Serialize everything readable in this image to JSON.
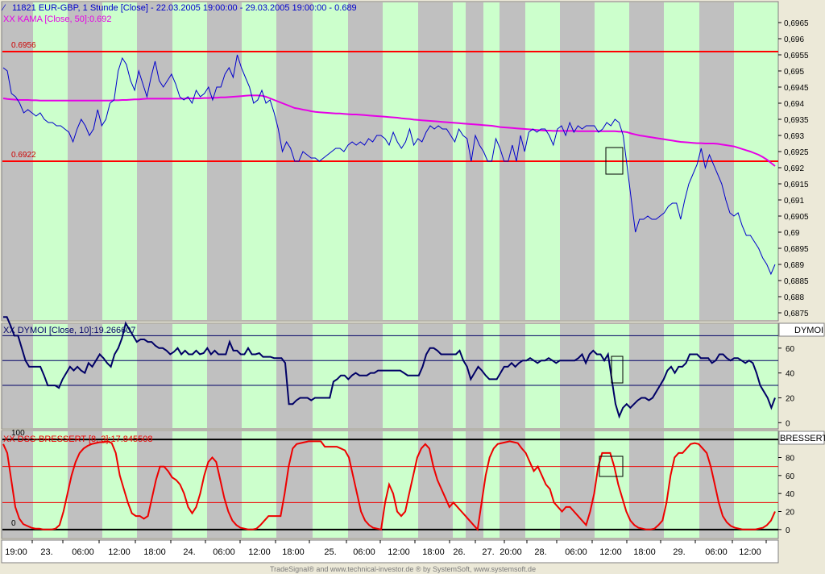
{
  "header": {
    "main_title": "11821  EUR-GBP, 1 Stunde [Close] - 22.03.2005 19:00:00 - 29.03.2005 19:00:00 - 0.689",
    "kama_label": "XX KAMA [Close, 50]:0.692",
    "dymoi_label": "XX DYMOI [Close, 10]:19.266607",
    "dss_label": "XX DSS-BRESSERT [8, 3]:17.845508"
  },
  "panel_tabs": {
    "dymoi": "DYMOI",
    "dss": "BRESSERT"
  },
  "footer": "TradeSignal® and www.technical-investor.de ® by SystemSoft, www.systemsoft.de",
  "colors": {
    "background": "#ffffff",
    "band_green": "#ccffcc",
    "band_gray": "#c0c0c0",
    "price_line": "#0000cc",
    "kama_line": "#e600e6",
    "level_line": "#ff0000",
    "dymoi_line": "#000066",
    "dss_line": "#ee0000"
  },
  "chart_data": [
    {
      "type": "line",
      "title": "EUR-GBP, 1 Stunde [Close]",
      "ylim": [
        0.68725,
        0.69715
      ],
      "y_ticks": [
        "0,6965",
        "0,696",
        "0,6955",
        "0,695",
        "0,6945",
        "0,694",
        "0,6935",
        "0,693",
        "0,6925",
        "0,692",
        "0,6915",
        "0,691",
        "0,6905",
        "0,69",
        "0,6895",
        "0,689",
        "0,6885",
        "0,688",
        "0,6875"
      ],
      "horizontal_levels": [
        {
          "label": "0.6956",
          "value": 0.6956
        },
        {
          "label": "0.6922",
          "value": 0.6922
        }
      ],
      "series": [
        {
          "name": "EUR-GBP",
          "values": [
            0.6951,
            0.695,
            0.6943,
            0.6942,
            0.694,
            0.6937,
            0.6938,
            0.6937,
            0.6936,
            0.6937,
            0.6935,
            0.6934,
            0.6934,
            0.6933,
            0.6933,
            0.6932,
            0.6931,
            0.6928,
            0.6932,
            0.6935,
            0.6933,
            0.693,
            0.6932,
            0.6938,
            0.6933,
            0.6935,
            0.694,
            0.6941,
            0.695,
            0.6954,
            0.6952,
            0.6947,
            0.6944,
            0.695,
            0.6946,
            0.6942,
            0.6948,
            0.6953,
            0.6947,
            0.6945,
            0.6947,
            0.6949,
            0.6946,
            0.6942,
            0.6941,
            0.6942,
            0.694,
            0.6944,
            0.6942,
            0.6943,
            0.6945,
            0.6941,
            0.6945,
            0.6945,
            0.6949,
            0.6951,
            0.6948,
            0.6955,
            0.6951,
            0.6948,
            0.6945,
            0.694,
            0.6941,
            0.6944,
            0.694,
            0.6941,
            0.6937,
            0.6932,
            0.6925,
            0.6928,
            0.6926,
            0.6922,
            0.6922,
            0.6925,
            0.6924,
            0.6923,
            0.6923,
            0.6922,
            0.6923,
            0.6924,
            0.6925,
            0.6926,
            0.6926,
            0.6925,
            0.6927,
            0.6928,
            0.6927,
            0.6928,
            0.6927,
            0.6929,
            0.6928,
            0.693,
            0.693,
            0.6929,
            0.6927,
            0.6931,
            0.6928,
            0.6926,
            0.6928,
            0.6932,
            0.6927,
            0.6929,
            0.6928,
            0.6931,
            0.6933,
            0.6932,
            0.6933,
            0.6932,
            0.6932,
            0.693,
            0.6928,
            0.6932,
            0.693,
            0.6929,
            0.6922,
            0.693,
            0.6927,
            0.6925,
            0.6922,
            0.6922,
            0.6929,
            0.6926,
            0.6922,
            0.6922,
            0.6927,
            0.6922,
            0.693,
            0.6925,
            0.6931,
            0.6932,
            0.6931,
            0.6932,
            0.6932,
            0.693,
            0.6927,
            0.6932,
            0.6933,
            0.693,
            0.6934,
            0.6931,
            0.6933,
            0.6932,
            0.6933,
            0.6933,
            0.6933,
            0.6931,
            0.6932,
            0.6934,
            0.6933,
            0.6935,
            0.6934,
            0.693,
            0.692,
            0.691,
            0.69,
            0.6904,
            0.6904,
            0.6905,
            0.6904,
            0.6904,
            0.6905,
            0.6906,
            0.6908,
            0.6909,
            0.6909,
            0.6904,
            0.691,
            0.6915,
            0.6918,
            0.6921,
            0.6926,
            0.692,
            0.6924,
            0.6921,
            0.6918,
            0.6915,
            0.691,
            0.6906,
            0.6905,
            0.6906,
            0.6902,
            0.6899,
            0.6899,
            0.6897,
            0.6895,
            0.6892,
            0.689,
            0.6887,
            0.689
          ]
        },
        {
          "name": "KAMA",
          "values": [
            0.69415,
            0.69413,
            0.69412,
            0.69411,
            0.6941,
            0.6941,
            0.6941,
            0.69409,
            0.69409,
            0.69408,
            0.69408,
            0.69408,
            0.69408,
            0.69408,
            0.69408,
            0.69408,
            0.69408,
            0.69408,
            0.69408,
            0.69408,
            0.69408,
            0.69408,
            0.69408,
            0.69408,
            0.69408,
            0.69408,
            0.69408,
            0.69409,
            0.69409,
            0.6941,
            0.6941,
            0.69411,
            0.69412,
            0.69412,
            0.69413,
            0.69414,
            0.69414,
            0.69414,
            0.69414,
            0.69414,
            0.69414,
            0.69414,
            0.69414,
            0.69414,
            0.69414,
            0.69415,
            0.69415,
            0.69415,
            0.69415,
            0.69416,
            0.69416,
            0.69417,
            0.69417,
            0.69418,
            0.69418,
            0.69419,
            0.6942,
            0.69421,
            0.69422,
            0.69423,
            0.69424,
            0.69424,
            0.69424,
            0.69423,
            0.6942,
            0.69415,
            0.6941,
            0.69405,
            0.694,
            0.69395,
            0.6939,
            0.69385,
            0.69383,
            0.6938,
            0.69378,
            0.69375,
            0.69373,
            0.69372,
            0.69371,
            0.6937,
            0.69369,
            0.69368,
            0.69368,
            0.69367,
            0.69366,
            0.69365,
            0.69365,
            0.69364,
            0.69363,
            0.69362,
            0.69361,
            0.6936,
            0.69359,
            0.69358,
            0.69357,
            0.69356,
            0.69355,
            0.69353,
            0.69352,
            0.69351,
            0.69349,
            0.69348,
            0.69347,
            0.69346,
            0.69345,
            0.69344,
            0.69343,
            0.69342,
            0.69341,
            0.6934,
            0.69339,
            0.69338,
            0.69337,
            0.69336,
            0.69335,
            0.69334,
            0.69333,
            0.69332,
            0.69331,
            0.6933,
            0.69328,
            0.69326,
            0.69325,
            0.69324,
            0.69323,
            0.69322,
            0.69321,
            0.6932,
            0.69319,
            0.69318,
            0.69317,
            0.69316,
            0.69315,
            0.69315,
            0.69314,
            0.69314,
            0.69314,
            0.69314,
            0.69314,
            0.69314,
            0.69313,
            0.69313,
            0.69313,
            0.69313,
            0.69313,
            0.69313,
            0.69313,
            0.69313,
            0.69313,
            0.69313,
            0.69312,
            0.69312,
            0.6931,
            0.69306,
            0.69303,
            0.693,
            0.69298,
            0.69296,
            0.69294,
            0.69292,
            0.6929,
            0.69288,
            0.69286,
            0.69284,
            0.69282,
            0.6928,
            0.69279,
            0.69278,
            0.69277,
            0.69276,
            0.69276,
            0.69275,
            0.69275,
            0.69275,
            0.69274,
            0.69272,
            0.6927,
            0.69268,
            0.69266,
            0.69262,
            0.69258,
            0.69254,
            0.6925,
            0.69245,
            0.6924,
            0.69233,
            0.69225,
            0.69215,
            0.69205
          ]
        }
      ]
    },
    {
      "type": "line",
      "title": "DYMOI [Close, 10]",
      "ylim": [
        -5,
        80
      ],
      "y_ticks": [
        60,
        40,
        20,
        0
      ],
      "reference_lines": [
        30,
        50,
        70
      ],
      "series": [
        {
          "name": "DYMOI",
          "values": [
            85,
            85,
            78,
            70,
            70,
            60,
            50,
            45,
            45,
            45,
            45,
            38,
            30,
            30,
            30,
            28,
            35,
            40,
            45,
            42,
            45,
            42,
            40,
            48,
            45,
            50,
            55,
            52,
            48,
            45,
            55,
            60,
            68,
            80,
            75,
            70,
            65,
            67,
            67,
            65,
            65,
            62,
            60,
            60,
            58,
            55,
            57,
            60,
            55,
            58,
            55,
            55,
            58,
            55,
            56,
            60,
            55,
            58,
            55,
            55,
            55,
            65,
            58,
            58,
            55,
            55,
            60,
            55,
            55,
            56,
            53,
            53,
            53,
            52,
            52,
            52,
            48,
            15,
            15,
            18,
            20,
            20,
            20,
            18,
            20,
            20,
            20,
            20,
            20,
            33,
            35,
            38,
            38,
            35,
            38,
            40,
            38,
            38,
            38,
            40,
            40,
            42,
            42,
            42,
            42,
            42,
            42,
            42,
            40,
            38,
            38,
            38,
            38,
            45,
            55,
            60,
            60,
            58,
            55,
            55,
            55,
            55,
            55,
            58,
            50,
            45,
            35,
            40,
            45,
            42,
            38,
            35,
            35,
            35,
            40,
            45,
            45,
            48,
            45,
            48,
            50,
            50,
            52,
            50,
            48,
            50,
            50,
            52,
            50,
            48,
            50,
            50,
            50,
            50,
            50,
            52,
            55,
            48,
            55,
            58,
            55,
            55,
            50,
            55,
            35,
            15,
            5,
            12,
            15,
            12,
            15,
            18,
            20,
            20,
            18,
            20,
            25,
            30,
            35,
            42,
            45,
            40,
            45,
            45,
            48,
            55,
            55,
            55,
            52,
            52,
            52,
            48,
            50,
            55,
            55,
            52,
            50,
            52,
            52,
            50,
            48,
            50,
            48,
            40,
            30,
            25,
            20,
            12,
            20
          ]
        }
      ]
    },
    {
      "type": "line",
      "title": "DSS-BRESSERT [8, 3]",
      "ylim": [
        -10,
        110
      ],
      "y_ticks": [
        80,
        60,
        40,
        20,
        0
      ],
      "reference_lines": [
        0,
        30,
        70,
        100
      ],
      "series": [
        {
          "name": "DSS-BRESSERT",
          "values": [
            95,
            85,
            55,
            25,
            12,
            6,
            4,
            2,
            1,
            1,
            0,
            0,
            0,
            1,
            5,
            20,
            40,
            60,
            75,
            85,
            90,
            93,
            95,
            96,
            97,
            97,
            98,
            96,
            85,
            60,
            45,
            30,
            18,
            15,
            15,
            12,
            15,
            35,
            55,
            70,
            70,
            65,
            58,
            55,
            50,
            40,
            25,
            18,
            25,
            40,
            60,
            75,
            80,
            75,
            55,
            35,
            20,
            10,
            5,
            2,
            1,
            0,
            0,
            1,
            5,
            10,
            15,
            15,
            15,
            15,
            40,
            70,
            90,
            95,
            96,
            97,
            98,
            98,
            98,
            98,
            92,
            92,
            92,
            92,
            90,
            88,
            80,
            60,
            40,
            20,
            10,
            5,
            2,
            1,
            0,
            30,
            50,
            40,
            20,
            15,
            20,
            40,
            60,
            80,
            90,
            95,
            90,
            70,
            55,
            45,
            35,
            25,
            30,
            25,
            20,
            15,
            10,
            5,
            0,
            30,
            60,
            80,
            90,
            95,
            96,
            97,
            98,
            97,
            96,
            90,
            85,
            75,
            65,
            70,
            60,
            50,
            45,
            30,
            25,
            20,
            25,
            25,
            20,
            15,
            10,
            5,
            20,
            40,
            70,
            85,
            85,
            85,
            70,
            50,
            35,
            20,
            10,
            5,
            2,
            1,
            0,
            0,
            1,
            5,
            10,
            30,
            60,
            80,
            85,
            85,
            90,
            95,
            96,
            95,
            90,
            85,
            70,
            50,
            30,
            15,
            8,
            4,
            2,
            1,
            0,
            0,
            0,
            0,
            1,
            2,
            5,
            10,
            20
          ]
        }
      ]
    }
  ],
  "x_labels": [
    "19:00",
    "23.",
    "06:00",
    "12:00",
    "18:00",
    "24.",
    "06:00",
    "12:00",
    "18:00",
    "25.",
    "06:00",
    "12:00",
    "18:00",
    "26.",
    "27.",
    "20:00",
    "28.",
    "06:00",
    "12:00",
    "18:00",
    "29.",
    "06:00",
    "12:00"
  ]
}
